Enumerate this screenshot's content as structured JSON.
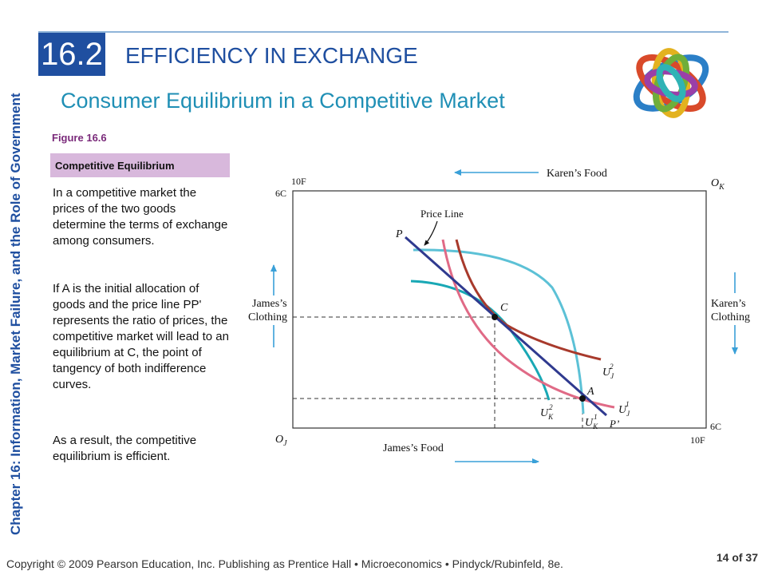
{
  "chapter_label": "Chapter 16:  Information, Market Failure, and the Role of Government",
  "section": {
    "number": "16.2",
    "title": "EFFICIENCY IN EXCHANGE"
  },
  "subtitle": "Consumer Equilibrium in a Competitive Market",
  "figure": {
    "number": "Figure 16.6",
    "caption": "Competitive Equilibrium"
  },
  "paragraphs": [
    "In a competitive market the prices of the two goods determine the terms of exchange among consumers.",
    "If A is the initial allocation of goods and the price line PP' represents the ratio of prices, the competitive market will lead to an equilibrium at C, the point of tangency of both indifference curves.",
    "As a result, the competitive equilibrium is efficient."
  ],
  "diagram": {
    "karens_food": "Karen’s Food",
    "james_food": "James’s Food",
    "james_clothing": [
      "James’s",
      "Clothing"
    ],
    "karens_clothing": [
      "Karen’s",
      "Clothing"
    ],
    "origin_k": "O",
    "origin_k_sub": "K",
    "origin_j": "O",
    "origin_j_sub": "J",
    "top_left_food": "10F",
    "top_left_clothing": "6C",
    "bottom_right_food": "10F",
    "bottom_right_clothing": "6C",
    "price_line_label": "Price Line",
    "p_label": "P",
    "p_prime_label": "P’",
    "point_c": "C",
    "point_a": "A",
    "uj2": {
      "main": "U",
      "sub": "J",
      "sup": "2"
    },
    "uj1": {
      "main": "U",
      "sub": "J",
      "sup": "1"
    },
    "uk2": {
      "main": "U",
      "sub": "K",
      "sup": "2"
    },
    "uk1": {
      "main": "U",
      "sub": "K",
      "sup": "1"
    },
    "colors": {
      "box": "#333333",
      "arrow": "#3aa0d8",
      "price_line": "#2f3a8f",
      "james_low": "#e06a86",
      "james_high": "#a83a2c",
      "karen_low": "#19a8b5",
      "karen_high": "#5cc1d6"
    }
  },
  "footer": "Copyright © 2009 Pearson Education, Inc. Publishing as Prentice Hall  •  Microeconomics  •  Pindyck/Rubinfeld, 8e.",
  "page": "14 of 37"
}
